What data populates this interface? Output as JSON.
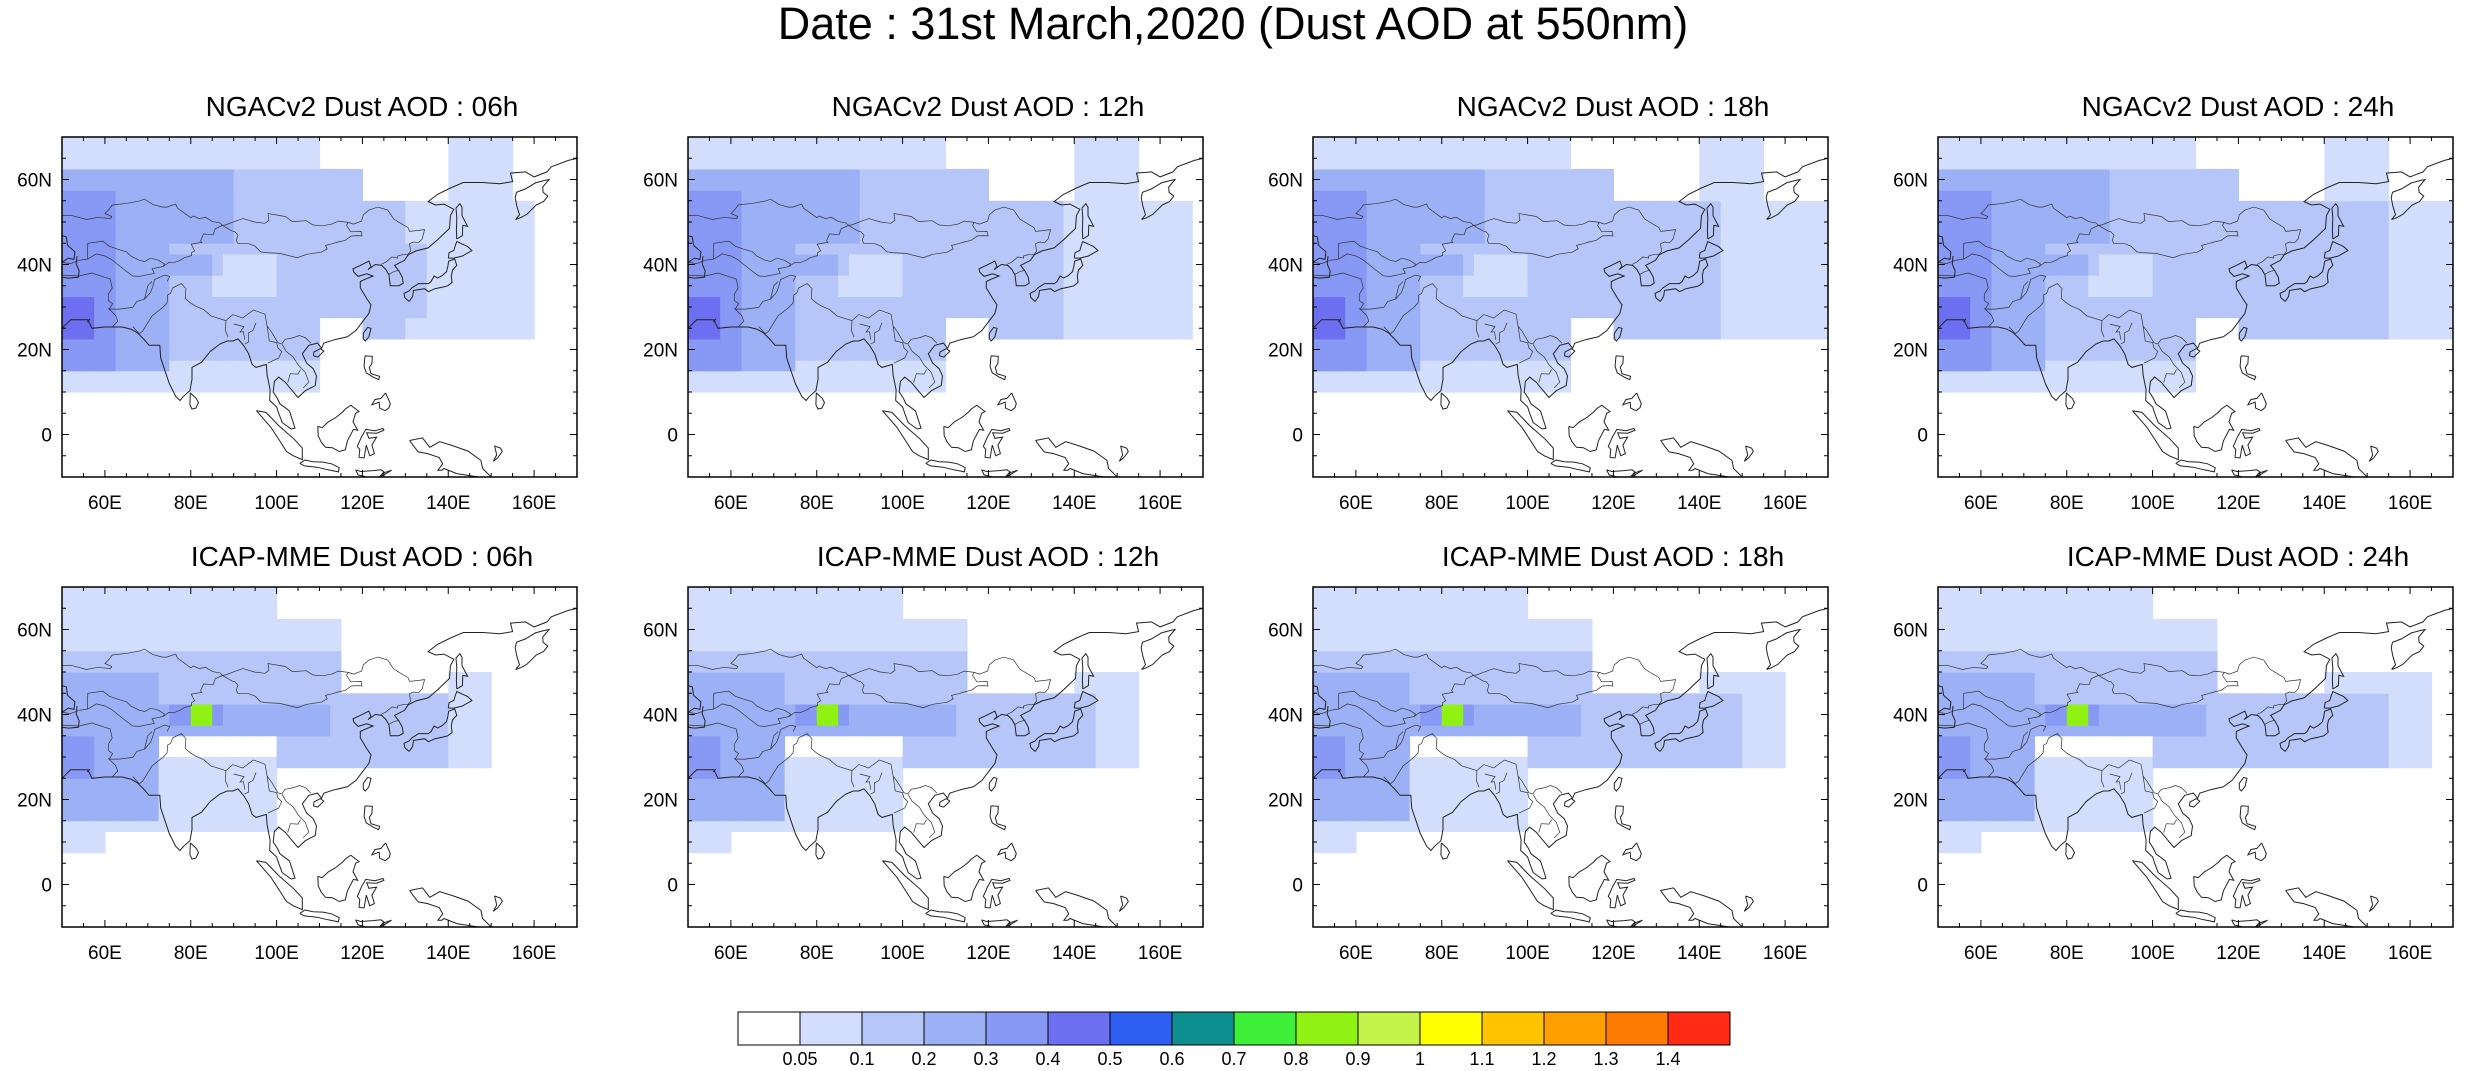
{
  "title": "Date : 31st March,2020 (Dust AOD at 550nm)",
  "map": {
    "lon_range": [
      50,
      170
    ],
    "lat_range": [
      -10,
      70
    ],
    "xticks": [
      {
        "lon": 60,
        "label": "60E"
      },
      {
        "lon": 80,
        "label": "80E"
      },
      {
        "lon": 100,
        "label": "100E"
      },
      {
        "lon": 120,
        "label": "120E"
      },
      {
        "lon": 140,
        "label": "140E"
      },
      {
        "lon": 160,
        "label": "160E"
      }
    ],
    "yticks": [
      {
        "lat": 60,
        "label": "60N"
      },
      {
        "lat": 40,
        "label": "40N"
      },
      {
        "lat": 20,
        "label": "20N"
      },
      {
        "lat": 0,
        "label": "0"
      }
    ]
  },
  "panels": [
    {
      "title": "NGACv2 Dust AOD : 06h",
      "model": "NGACv2",
      "lead": "06h"
    },
    {
      "title": "NGACv2 Dust AOD : 12h",
      "model": "NGACv2",
      "lead": "12h"
    },
    {
      "title": "NGACv2 Dust AOD : 18h",
      "model": "NGACv2",
      "lead": "18h"
    },
    {
      "title": "NGACv2 Dust AOD : 24h",
      "model": "NGACv2",
      "lead": "24h"
    },
    {
      "title": "ICAP-MME Dust AOD : 06h",
      "model": "ICAP-MME",
      "lead": "06h"
    },
    {
      "title": "ICAP-MME Dust AOD : 12h",
      "model": "ICAP-MME",
      "lead": "12h"
    },
    {
      "title": "ICAP-MME Dust AOD : 18h",
      "model": "ICAP-MME",
      "lead": "18h"
    },
    {
      "title": "ICAP-MME Dust AOD : 24h",
      "model": "ICAP-MME",
      "lead": "24h"
    }
  ],
  "colorbar": {
    "labels": [
      "0.05",
      "0.1",
      "0.2",
      "0.3",
      "0.4",
      "0.5",
      "0.6",
      "0.7",
      "0.8",
      "0.9",
      "1",
      "1.1",
      "1.2",
      "1.3",
      "1.4"
    ],
    "colors": [
      "#ffffff",
      "#d2defc",
      "#b6c6f9",
      "#9cb0f6",
      "#8799f4",
      "#6c6ff0",
      "#2f5ef2",
      "#0d8f8f",
      "#3ef03a",
      "#8ff212",
      "#c4f44a",
      "#ffff00",
      "#ffc400",
      "#ffa000",
      "#ff7a00",
      "#ff2a14"
    ]
  }
}
